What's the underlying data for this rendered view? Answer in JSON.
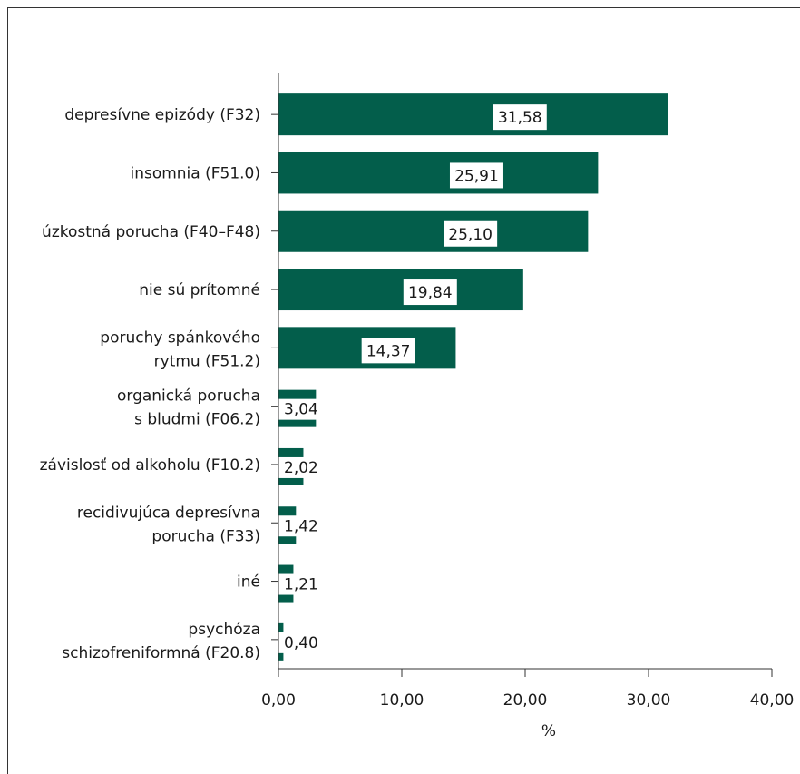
{
  "chart_data": {
    "type": "bar",
    "orientation": "horizontal",
    "categories": [
      [
        "depresívne epizódy (F32)"
      ],
      [
        "insomnia (F51.0)"
      ],
      [
        "úzkostná porucha (F40–F48)"
      ],
      [
        "nie sú prítomné"
      ],
      [
        "poruchy spánkového",
        "rytmu (F51.2)"
      ],
      [
        "organická porucha",
        "s bludmi (F06.2)"
      ],
      [
        "závislosť od alkoholu (F10.2)"
      ],
      [
        "recidivujúca depresívna",
        "porucha (F33)"
      ],
      [
        "iné"
      ],
      [
        "psychóza",
        "schizofreniformná (F20.8)"
      ]
    ],
    "values": [
      31.58,
      25.91,
      25.1,
      19.84,
      14.37,
      3.04,
      2.02,
      1.42,
      1.21,
      0.4
    ],
    "value_labels": [
      "31,58",
      "25,91",
      "25,10",
      "19,84",
      "14,37",
      "3,04",
      "2,02",
      "1,42",
      "1,21",
      "0,40"
    ],
    "xlim": [
      0,
      40
    ],
    "xticks": [
      0,
      10,
      20,
      30,
      40
    ],
    "xtick_labels": [
      "0,00",
      "10,00",
      "20,00",
      "30,00",
      "40,00"
    ],
    "xlabel": "%",
    "ylabel": "",
    "title": "",
    "grid": false,
    "legend": "none",
    "bar_color": "#035e4b"
  }
}
